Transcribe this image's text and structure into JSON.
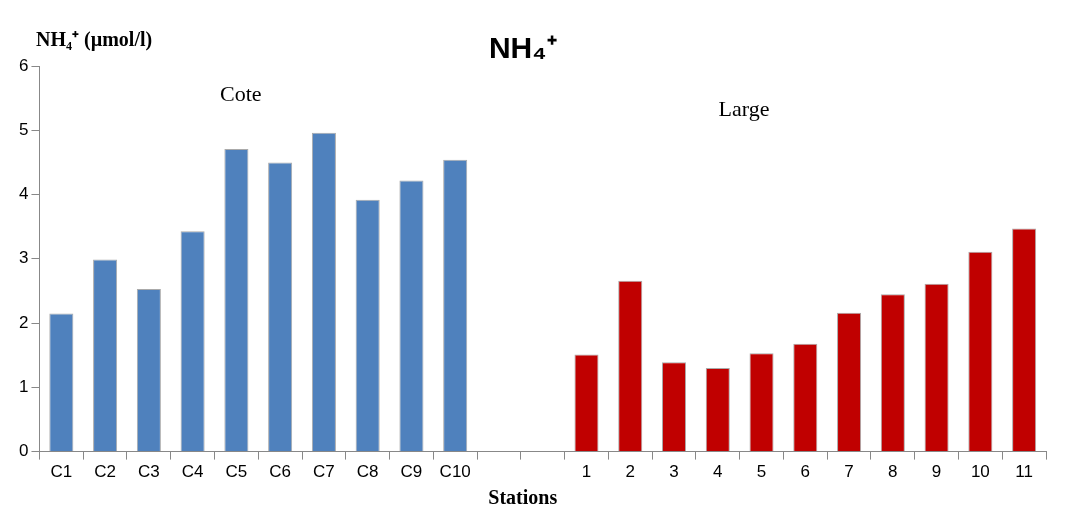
{
  "chart_data": {
    "type": "bar",
    "title": "NH₄⁺",
    "ylabel": "NH₄⁺ (µmol/l)",
    "xlabel": "Stations",
    "categories": [
      "C1",
      "C2",
      "C3",
      "C4",
      "C5",
      "C6",
      "C7",
      "C8",
      "C9",
      "C10",
      null,
      null,
      "1",
      "2",
      "3",
      "4",
      "5",
      "6",
      "7",
      "8",
      "9",
      "10",
      "11"
    ],
    "values": [
      2.15,
      2.99,
      2.53,
      3.43,
      4.71,
      4.5,
      4.96,
      3.92,
      4.22,
      4.54,
      null,
      null,
      1.51,
      2.66,
      1.39,
      1.3,
      1.53,
      1.68,
      2.16,
      2.45,
      2.61,
      3.11,
      3.47
    ],
    "colors": [
      "#4f81bd",
      "#4f81bd",
      "#4f81bd",
      "#4f81bd",
      "#4f81bd",
      "#4f81bd",
      "#4f81bd",
      "#4f81bd",
      "#4f81bd",
      "#4f81bd",
      "#4f81bd",
      "#4f81bd",
      "#c00000",
      "#c00000",
      "#c00000",
      "#c00000",
      "#c00000",
      "#c00000",
      "#c00000",
      "#c00000",
      "#c00000",
      "#c00000",
      "#c00000"
    ],
    "ylim": [
      0,
      6
    ],
    "yticks": [
      0,
      1,
      2,
      3,
      4,
      5,
      6
    ],
    "grid": false,
    "legend": false,
    "annotations": [
      "Cote",
      "Large"
    ]
  }
}
